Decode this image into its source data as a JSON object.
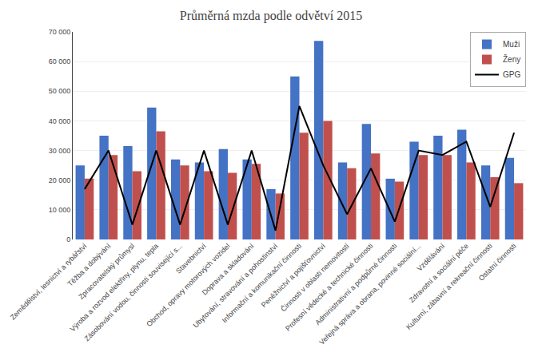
{
  "chart_data": {
    "type": "bar",
    "title": "Průměrná mzda podle odvětví 2015",
    "categories": [
      "Zemědělství, lesnictví a rybářství",
      "Těžba a dobývání",
      "Zpracovatelský průmysl",
      "Výroba a rozvod elektřiny, plynu, tepla",
      "Zásobování vodou, činnosti související s...",
      "Stavebnictví",
      "Obchod, opravy motorových vozidel",
      "Doprava a skladování",
      "Ubytování, stravování a pohostinství",
      "Informační a komunikační činnosti",
      "Peněžnictví a pojišťovnictví",
      "Činnosti v oblasti nemovitostí",
      "Profesní vědecké a technické činnosti",
      "Administrativní a podpůrné činnosti",
      "Veřejná správa a obrana, povinné sociální...",
      "Vzdělávání",
      "Zdravotní a sociální péče",
      "Kulturní, zábavní a rekreační činnosti",
      "Ostatní činnosti"
    ],
    "series": [
      {
        "name": "Muži",
        "type": "bar",
        "color": "#4472C4",
        "values": [
          25000,
          35000,
          31500,
          44500,
          27000,
          26000,
          30500,
          27000,
          17000,
          55000,
          67000,
          26000,
          39000,
          20500,
          33000,
          35000,
          37000,
          25000,
          27500
        ]
      },
      {
        "name": "Ženy",
        "type": "bar",
        "color": "#C0504D",
        "values": [
          20500,
          28500,
          23000,
          36500,
          25000,
          23000,
          22500,
          25500,
          15500,
          36000,
          40000,
          24000,
          29000,
          19500,
          28500,
          28500,
          26000,
          21000,
          19000
        ]
      },
      {
        "name": "GPG",
        "type": "line",
        "color": "#000000",
        "values": [
          17000,
          30000,
          5000,
          30000,
          5000,
          30000,
          5000,
          30000,
          3000,
          45000,
          25000,
          8500,
          24000,
          6000,
          30000,
          28500,
          33000,
          11000,
          36000
        ]
      }
    ],
    "ylim": [
      0,
      70000
    ],
    "yticks": [
      0,
      {
        "value": 10000,
        "label": "10 000"
      },
      {
        "value": 20000,
        "label": "20 000"
      },
      {
        "value": 30000,
        "label": "30 000"
      },
      {
        "value": 40000,
        "label": "40 000"
      },
      {
        "value": 50000,
        "label": "50 000"
      },
      {
        "value": 60000,
        "label": "60 000"
      },
      {
        "value": 70000,
        "label": "70 000"
      }
    ],
    "grid": true,
    "legend": "upper right"
  }
}
